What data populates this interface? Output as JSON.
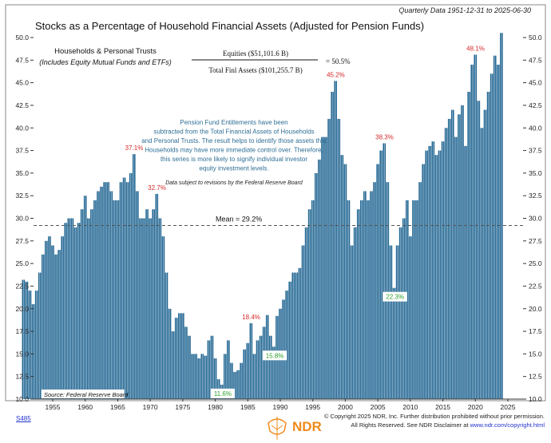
{
  "header": {
    "title": "Stocks as a Percentage of Household Financial Assets (Adjusted for Pension Funds)",
    "subtitle": "Quarterly Data 1951-12-31 to 2025-06-30"
  },
  "legend": {
    "line1": "Households & Personal Trusts",
    "line2": "(Includes Equity Mutual Funds and ETFs)",
    "numerator": "Equities ($51,101.6 B)",
    "denominator": "Total Finl Assets ($101,255.7 B)",
    "result": "=   50.5%"
  },
  "note": {
    "lines": [
      "Pension Fund Entitlements have been",
      "subtracted from the Total Financial Assets of Households",
      "and Personal Trusts. The result helps to identify those assets that",
      "Households may have more immediate control over. Therefore,",
      "this series is more likely to signify individual investor",
      "equity investment levels."
    ],
    "revision": "Data subject to revisions by the Federal Reserve Board"
  },
  "source": "Source:  Federal Reserve Board",
  "footer": {
    "code": "S485",
    "copyright1": "© Copyright 2025 NDR, Inc. Further distribution prohibited without prior permission.",
    "copyright2": "All Rights Reserved. See NDR Disclaimer at ",
    "link": "www.ndr.com/copyright.html",
    "logo": "NDR"
  },
  "colors": {
    "bar": "#1f6491",
    "bar_edge": "#0d3c5e",
    "peak": "#d62728",
    "trough": "#2ca02c",
    "mean": "#555555"
  },
  "chart_data": {
    "type": "bar",
    "title": "Stocks as a Percentage of Household Financial Assets (Adjusted for Pension Funds)",
    "xlabel": "",
    "ylabel": "",
    "ylim": [
      10,
      51
    ],
    "yticks": [
      "10.0",
      "12.5",
      "15.0",
      "17.5",
      "20.0",
      "22.5",
      "25.0",
      "27.5",
      "30.0",
      "32.5",
      "35.0",
      "37.5",
      "40.0",
      "42.5",
      "45.0",
      "47.5",
      "50.0"
    ],
    "xticks": [
      "1955",
      "1960",
      "1965",
      "1970",
      "1975",
      "1980",
      "1985",
      "1990",
      "1995",
      "2000",
      "2005",
      "2010",
      "2015",
      "2020",
      "2025"
    ],
    "x_start": 1952.0,
    "x_step": 0.5,
    "values": [
      23.2,
      23.0,
      22,
      20.5,
      22,
      24,
      26,
      27.5,
      28,
      27,
      26,
      26.5,
      28,
      29.5,
      30,
      30,
      29,
      29.5,
      31,
      32.5,
      30,
      31,
      32,
      33,
      33.5,
      34,
      34,
      33,
      32,
      32,
      34,
      34.5,
      34,
      35,
      37.1,
      33,
      30,
      30,
      31,
      30,
      31,
      32.7,
      30,
      28,
      24,
      20,
      17.5,
      19,
      19.5,
      19.5,
      18,
      17,
      15,
      15,
      14.5,
      15,
      14.8,
      16.5,
      17,
      14.5,
      12.2,
      11.6,
      15,
      16.5,
      14,
      13,
      13.2,
      14,
      15.5,
      16.2,
      18.4,
      15,
      16.5,
      17,
      18,
      19.3,
      17,
      15.8,
      19.2,
      20,
      21,
      22,
      23,
      24,
      24,
      24.5,
      27,
      29,
      31,
      32,
      35,
      36.5,
      39,
      39,
      41,
      44,
      45.2,
      41,
      37,
      36,
      32,
      27,
      29,
      31,
      32,
      33,
      32,
      33,
      34,
      36,
      37.5,
      38.3,
      34,
      27,
      22.3,
      27,
      29,
      30,
      32,
      28,
      32,
      32,
      34,
      36,
      37.5,
      38,
      38.5,
      37,
      37.5,
      38.5,
      40,
      41,
      42,
      39,
      41.5,
      42.5,
      38,
      44,
      47,
      48.1,
      43,
      40,
      42,
      44,
      46,
      48,
      47,
      50.5
    ],
    "mean": {
      "value": 29.2,
      "label": "Mean = 29.2%"
    },
    "annotations": [
      {
        "year": 1969.0,
        "value": 37.1,
        "label": "37.1%",
        "kind": "peak"
      },
      {
        "year": 1972.5,
        "value": 32.7,
        "label": "32.7%",
        "kind": "peak"
      },
      {
        "year": 1982.5,
        "value": 11.6,
        "label": "11.6%",
        "kind": "trough"
      },
      {
        "year": 1987.0,
        "value": 18.4,
        "label": "18.4%",
        "kind": "peak"
      },
      {
        "year": 1990.5,
        "value": 15.8,
        "label": "15.8%",
        "kind": "trough"
      },
      {
        "year": 2000.0,
        "value": 45.2,
        "label": "45.2%",
        "kind": "peak"
      },
      {
        "year": 2007.5,
        "value": 38.3,
        "label": "38.3%",
        "kind": "peak"
      },
      {
        "year": 2009.0,
        "value": 22.3,
        "label": "22.3%",
        "kind": "trough"
      },
      {
        "year": 2021.5,
        "value": 48.1,
        "label": "48.1%",
        "kind": "peak"
      }
    ]
  }
}
